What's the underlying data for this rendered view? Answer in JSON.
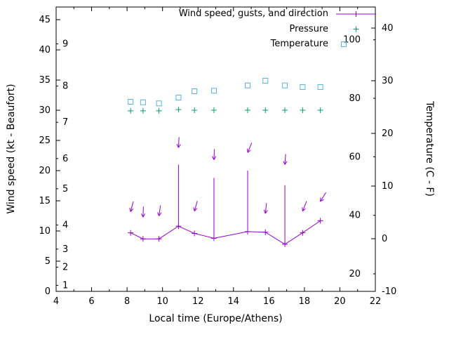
{
  "colors": {
    "background": "#ffffff",
    "axis": "#000000",
    "wind": "#9400d3",
    "pressure": "#009e73",
    "temperature": "#56b4e9"
  },
  "legend": {
    "items": [
      {
        "label": "Wind speed, gusts, and direction",
        "series": "wind",
        "marker": "line-with-plus"
      },
      {
        "label": "Pressure",
        "series": "pressure",
        "marker": "plus"
      },
      {
        "label": "Temperature",
        "series": "temperature",
        "marker": "open-square"
      }
    ]
  },
  "chart_data": {
    "type": "line",
    "title": "",
    "xlabel": "Local time (Europe/Athens)",
    "ylabel": "Wind speed (kt - Beaufort)",
    "y2label": "Temperature (C - F)",
    "x_range_hours": [
      4,
      22
    ],
    "wind_kt_range": [
      0,
      47.1
    ],
    "temp_c_range": [
      -10,
      44
    ],
    "grid": false,
    "legend_position": "top-right-inside",
    "axes": {
      "x_ticks": [
        4,
        6,
        8,
        10,
        12,
        14,
        16,
        18,
        20,
        22
      ],
      "kt_ticks": [
        0,
        5,
        10,
        15,
        20,
        25,
        30,
        35,
        40,
        45
      ],
      "beaufort_ticks": [
        {
          "label": "1",
          "kt": 1
        },
        {
          "label": "2",
          "kt": 4
        },
        {
          "label": "3",
          "kt": 7
        },
        {
          "label": "4",
          "kt": 11
        },
        {
          "label": "5",
          "kt": 17
        },
        {
          "label": "6",
          "kt": 22
        },
        {
          "label": "7",
          "kt": 28
        },
        {
          "label": "8",
          "kt": 34
        },
        {
          "label": "9",
          "kt": 41
        }
      ],
      "celsius_ticks": [
        -10,
        0,
        10,
        20,
        30,
        40
      ],
      "fahrenheit_ticks": [
        20,
        40,
        60,
        80,
        100
      ]
    },
    "series": {
      "wind": {
        "name": "Wind speed, gusts, and direction",
        "hours": [
          8.2,
          8.9,
          9.8,
          10.9,
          11.8,
          12.9,
          14.8,
          15.8,
          16.9,
          17.9,
          18.9
        ],
        "speed_kt": [
          9.7,
          8.7,
          8.7,
          10.8,
          9.6,
          8.8,
          9.9,
          9.8,
          7.8,
          9.7,
          11.7
        ],
        "gust_kt": [
          null,
          null,
          null,
          21.0,
          null,
          18.8,
          20.0,
          null,
          17.6,
          null,
          null
        ],
        "direction_arrows": {
          "head_kt": [
            13.2,
            12.3,
            12.5,
            23.8,
            13.3,
            21.8,
            23.0,
            12.9,
            21.0,
            13.3,
            14.9
          ],
          "angle_deg": [
            195,
            182,
            188,
            183,
            196,
            182,
            203,
            186,
            184,
            202,
            212
          ]
        }
      },
      "pressure": {
        "name": "Pressure",
        "hours": [
          8.2,
          8.9,
          9.8,
          10.9,
          11.8,
          12.9,
          14.8,
          15.8,
          16.9,
          17.9,
          18.9
        ],
        "values_plot_kt": [
          29.9,
          29.9,
          29.9,
          30.1,
          30.0,
          30.0,
          30.0,
          30.0,
          30.0,
          30.0,
          30.0
        ]
      },
      "temperature": {
        "name": "Temperature",
        "hours": [
          8.2,
          8.9,
          9.8,
          10.9,
          11.8,
          12.9,
          14.8,
          15.8,
          16.9,
          17.9,
          18.9
        ],
        "celsius": [
          26.0,
          25.9,
          25.7,
          26.8,
          28.0,
          28.1,
          29.1,
          30.0,
          29.1,
          28.8,
          28.8
        ]
      }
    }
  }
}
